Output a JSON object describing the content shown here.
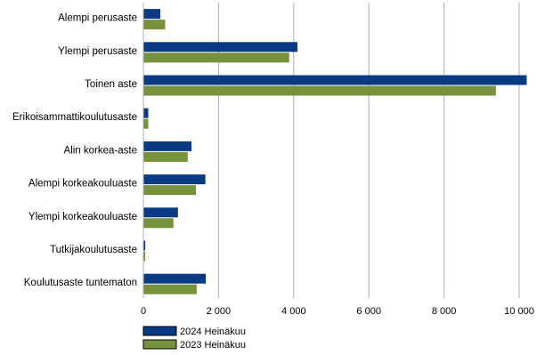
{
  "chart_data": {
    "type": "bar",
    "orientation": "horizontal",
    "categories": [
      "Alempi perusaste",
      "Ylempi perusaste",
      "Toinen aste",
      "Erikoisammattikoulutusaste",
      "Alin korkea-aste",
      "Alempi korkeakouluaste",
      "Ylempi korkeakouluaste",
      "Tutkijakoulutusaste",
      "Koulutusaste tuntematon"
    ],
    "series": [
      {
        "name": "2024 Heinäkuu",
        "color": "#0b3a85",
        "values": [
          450,
          4100,
          10200,
          130,
          1280,
          1650,
          920,
          50,
          1660
        ]
      },
      {
        "name": "2023 Heinäkuu",
        "color": "#76923c",
        "values": [
          580,
          3880,
          9380,
          130,
          1180,
          1400,
          800,
          50,
          1420
        ]
      }
    ],
    "xlim": [
      0,
      10000
    ],
    "xticks": [
      0,
      2000,
      4000,
      6000,
      8000,
      10000
    ],
    "xtick_labels": [
      "0",
      "2 000",
      "4 000",
      "6 000",
      "8 000",
      "10 000"
    ],
    "grid": "vertical",
    "legend_position": "bottom-left",
    "title": "",
    "xlabel": "",
    "ylabel": ""
  }
}
